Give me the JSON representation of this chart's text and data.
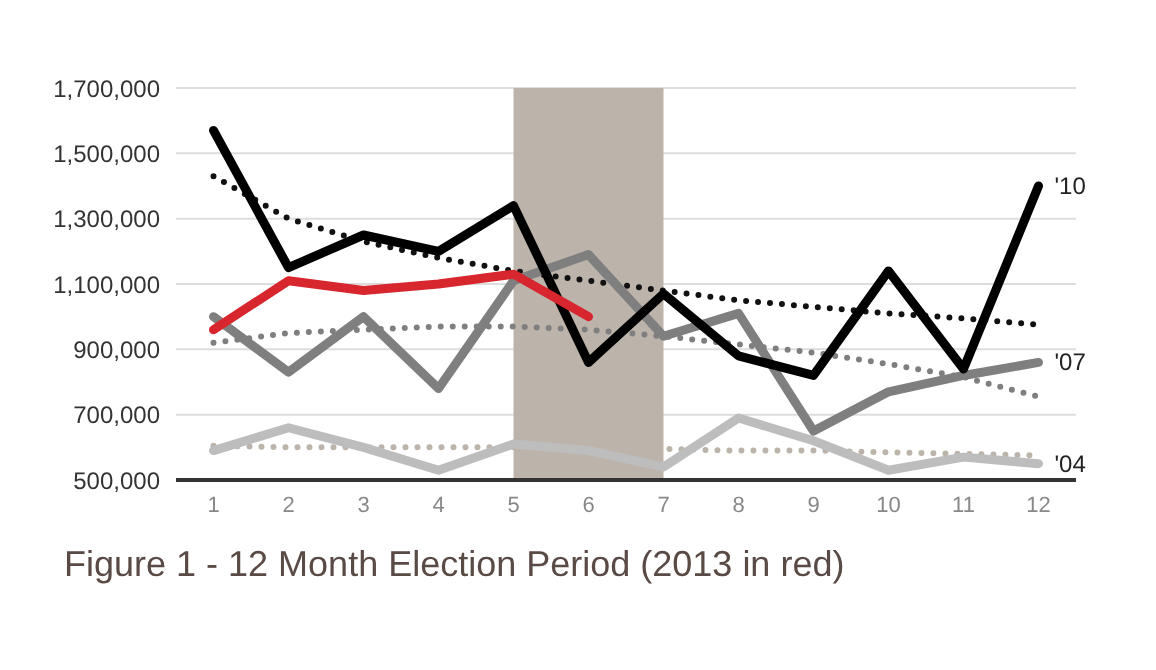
{
  "chart_data": {
    "type": "line",
    "title": "Figure 1 - 12 Month Election Period (2013 in red)",
    "x": [
      1,
      2,
      3,
      4,
      5,
      6,
      7,
      8,
      9,
      10,
      11,
      12
    ],
    "series": [
      {
        "color": "#bcb4ab",
        "type": "line",
        "line_style": "dotted",
        "values": [
          605000,
          600000,
          600000,
          600000,
          600000,
          595000,
          595000,
          590000,
          590000,
          585000,
          580000,
          575000
        ]
      },
      {
        "color": "#7f7f7f",
        "type": "line",
        "line_style": "dotted",
        "values": [
          920000,
          950000,
          960000,
          970000,
          970000,
          960000,
          940000,
          915000,
          890000,
          855000,
          815000,
          755000
        ]
      },
      {
        "color": "#111111",
        "type": "line",
        "line_style": "dotted",
        "values": [
          1430000,
          1300000,
          1230000,
          1180000,
          1140000,
          1110000,
          1080000,
          1050000,
          1030000,
          1010000,
          995000,
          975000
        ]
      },
      {
        "name": "'04",
        "color": "#bdbdbd",
        "values": [
          590000,
          660000,
          600000,
          530000,
          610000,
          590000,
          540000,
          690000,
          620000,
          530000,
          570000,
          550000
        ]
      },
      {
        "name": "'07",
        "color": "#7f7f7f",
        "values": [
          1000000,
          830000,
          1000000,
          780000,
          1110000,
          1190000,
          940000,
          1010000,
          650000,
          770000,
          820000,
          860000
        ]
      },
      {
        "name": "'10",
        "color": "#000000",
        "values": [
          1570000,
          1150000,
          1250000,
          1200000,
          1340000,
          860000,
          1070000,
          880000,
          820000,
          1140000,
          840000,
          1400000
        ]
      },
      {
        "color": "#d7262e",
        "values": [
          960000,
          1110000,
          1080000,
          1100000,
          1130000,
          1000000,
          null,
          null,
          null,
          null,
          null,
          null
        ]
      }
    ],
    "xlim": [
      0.5,
      12.5
    ],
    "xticks": [
      1,
      2,
      3,
      4,
      5,
      6,
      7,
      8,
      9,
      10,
      11,
      12
    ],
    "ylim": [
      500000,
      1700000
    ],
    "yticks": [
      {
        "value": 500000,
        "label": "500,000"
      },
      {
        "value": 700000,
        "label": "700,000"
      },
      {
        "value": 900000,
        "label": "900,000"
      },
      {
        "value": 1100000,
        "label": "1,100,000"
      },
      {
        "value": 1300000,
        "label": "1,300,000"
      },
      {
        "value": 1500000,
        "label": "1,500,000"
      },
      {
        "value": 1700000,
        "label": "1,700,000"
      }
    ],
    "bands": [
      {
        "axis": "x",
        "from": 5,
        "to": 7,
        "color": "#bcb4ab"
      }
    ],
    "grid": "y",
    "marker": "none",
    "line_style": "solid"
  }
}
